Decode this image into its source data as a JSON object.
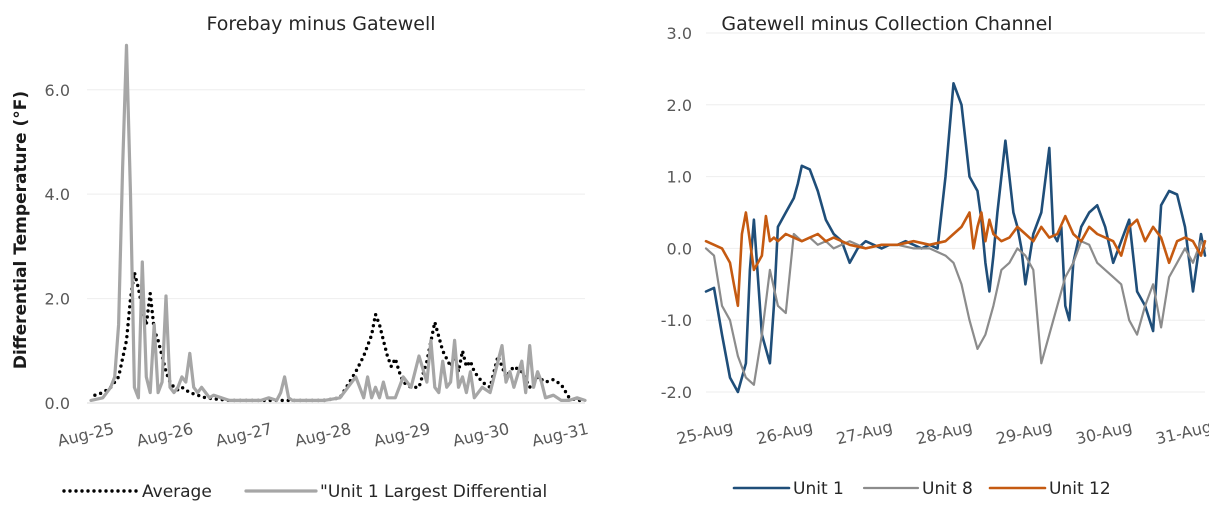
{
  "chart_data": [
    {
      "type": "line",
      "title": "Forebay minus Gatewell",
      "ylabel": "Differential Temperature (°F)",
      "ylim": [
        0,
        6.8
      ],
      "yticks": [
        "0.0",
        "2.0",
        "4.0",
        "6.0"
      ],
      "ytick_values": [
        0,
        2,
        4,
        6
      ],
      "xlim": [
        0,
        6.3
      ],
      "xticks": [
        "Aug-25",
        "Aug-26",
        "Aug-27",
        "Aug-28",
        "Aug-29",
        "Aug-30",
        "Aug-31"
      ],
      "xtick_values": [
        0,
        1,
        2,
        3,
        4,
        5,
        6
      ],
      "grid": true,
      "legend_position": "bottom",
      "series": [
        {
          "name": "Average",
          "style": "dotted",
          "color": "#000000",
          "x": [
            0.1,
            0.2,
            0.3,
            0.4,
            0.5,
            0.55,
            0.6,
            0.65,
            0.7,
            0.75,
            0.8,
            0.85,
            0.9,
            0.95,
            1.0,
            1.05,
            1.1,
            1.15,
            1.2,
            1.3,
            1.4,
            1.5,
            1.6,
            1.8,
            2.0,
            2.2,
            2.4,
            2.6,
            2.8,
            3.0,
            3.2,
            3.4,
            3.5,
            3.6,
            3.65,
            3.7,
            3.75,
            3.8,
            3.85,
            3.9,
            3.95,
            4.0,
            4.1,
            4.2,
            4.3,
            4.4,
            4.5,
            4.6,
            4.65,
            4.7,
            4.75,
            4.8,
            4.85,
            4.9,
            5.0,
            5.1,
            5.2,
            5.3,
            5.4,
            5.5,
            5.6,
            5.7,
            5.8,
            5.9,
            6.0,
            6.1,
            6.2,
            6.3
          ],
          "y": [
            0.15,
            0.2,
            0.3,
            0.5,
            1.2,
            2.0,
            2.5,
            2.2,
            1.8,
            1.5,
            2.1,
            1.4,
            1.2,
            0.9,
            0.6,
            0.4,
            0.3,
            0.25,
            0.3,
            0.2,
            0.15,
            0.1,
            0.08,
            0.05,
            0.05,
            0.05,
            0.05,
            0.05,
            0.05,
            0.05,
            0.1,
            0.6,
            0.9,
            1.3,
            1.7,
            1.5,
            1.2,
            0.9,
            0.7,
            0.85,
            0.6,
            0.4,
            0.3,
            0.3,
            0.8,
            1.55,
            1.0,
            0.7,
            0.9,
            0.6,
            1.0,
            0.7,
            0.8,
            0.6,
            0.4,
            0.3,
            0.9,
            0.5,
            0.7,
            0.6,
            0.3,
            0.5,
            0.4,
            0.45,
            0.35,
            0.1,
            0.05,
            0.05
          ]
        },
        {
          "name": "\"Unit 1 Largest Differential",
          "style": "solid",
          "color": "#a6a6a6",
          "x": [
            0.05,
            0.2,
            0.3,
            0.35,
            0.4,
            0.45,
            0.5,
            0.55,
            0.6,
            0.65,
            0.7,
            0.75,
            0.8,
            0.85,
            0.9,
            0.95,
            1.0,
            1.05,
            1.1,
            1.15,
            1.2,
            1.25,
            1.3,
            1.35,
            1.4,
            1.45,
            1.5,
            1.55,
            1.6,
            1.7,
            1.8,
            1.9,
            2.0,
            2.1,
            2.2,
            2.3,
            2.4,
            2.45,
            2.5,
            2.55,
            2.6,
            2.8,
            3.0,
            3.2,
            3.3,
            3.4,
            3.5,
            3.55,
            3.6,
            3.65,
            3.7,
            3.75,
            3.8,
            3.9,
            4.0,
            4.1,
            4.2,
            4.3,
            4.35,
            4.4,
            4.45,
            4.5,
            4.55,
            4.6,
            4.65,
            4.7,
            4.75,
            4.8,
            4.85,
            4.9,
            5.0,
            5.1,
            5.2,
            5.25,
            5.3,
            5.35,
            5.4,
            5.5,
            5.55,
            5.6,
            5.65,
            5.7,
            5.75,
            5.8,
            5.9,
            6.0,
            6.1,
            6.2,
            6.3
          ],
          "y": [
            0.05,
            0.1,
            0.3,
            0.5,
            1.5,
            4.5,
            6.85,
            4.0,
            0.3,
            0.1,
            2.7,
            0.5,
            0.2,
            1.5,
            0.2,
            0.4,
            2.05,
            0.3,
            0.2,
            0.3,
            0.5,
            0.4,
            0.95,
            0.3,
            0.2,
            0.3,
            0.2,
            0.1,
            0.15,
            0.1,
            0.05,
            0.05,
            0.05,
            0.05,
            0.05,
            0.1,
            0.05,
            0.2,
            0.5,
            0.1,
            0.05,
            0.05,
            0.05,
            0.1,
            0.3,
            0.5,
            0.1,
            0.5,
            0.1,
            0.3,
            0.1,
            0.4,
            0.1,
            0.1,
            0.5,
            0.3,
            0.9,
            0.4,
            1.2,
            0.3,
            0.2,
            0.8,
            0.3,
            0.4,
            1.2,
            0.3,
            0.5,
            0.2,
            0.6,
            0.1,
            0.3,
            0.2,
            0.8,
            1.1,
            0.4,
            0.6,
            0.3,
            0.8,
            0.2,
            1.1,
            0.3,
            0.6,
            0.4,
            0.1,
            0.15,
            0.05,
            0.05,
            0.1,
            0.05
          ]
        }
      ]
    },
    {
      "type": "line",
      "title": "Gatewell minus Collection Channel",
      "ylabel": "",
      "ylim": [
        -2.0,
        3.0
      ],
      "yticks": [
        "-2.0",
        "-1.0",
        "0.0",
        "1.0",
        "2.0",
        "3.0"
      ],
      "ytick_values": [
        -2,
        -1,
        0,
        1,
        2,
        3
      ],
      "xlim": [
        0,
        6.25
      ],
      "xticks": [
        "25-Aug",
        "26-Aug",
        "27-Aug",
        "28-Aug",
        "29-Aug",
        "30-Aug",
        "31-Aug"
      ],
      "xtick_values": [
        0,
        1,
        2,
        3,
        4,
        5,
        6
      ],
      "grid": true,
      "legend_position": "bottom",
      "series": [
        {
          "name": "Unit 1",
          "color": "#1f4e79",
          "x": [
            0.0,
            0.1,
            0.2,
            0.3,
            0.4,
            0.5,
            0.55,
            0.6,
            0.7,
            0.8,
            0.85,
            0.9,
            1.0,
            1.1,
            1.15,
            1.2,
            1.3,
            1.4,
            1.5,
            1.6,
            1.7,
            1.8,
            1.9,
            2.0,
            2.1,
            2.2,
            2.3,
            2.4,
            2.5,
            2.6,
            2.7,
            2.8,
            2.9,
            3.0,
            3.1,
            3.2,
            3.3,
            3.4,
            3.45,
            3.5,
            3.55,
            3.6,
            3.65,
            3.7,
            3.75,
            3.8,
            3.85,
            3.9,
            3.95,
            4.0,
            4.1,
            4.2,
            4.3,
            4.35,
            4.4,
            4.45,
            4.5,
            4.55,
            4.6,
            4.7,
            4.8,
            4.9,
            5.0,
            5.1,
            5.2,
            5.3,
            5.4,
            5.5,
            5.6,
            5.7,
            5.8,
            5.9,
            6.0,
            6.1,
            6.2,
            6.25
          ],
          "y": [
            -0.6,
            -0.55,
            -1.2,
            -1.8,
            -2.0,
            -1.6,
            -0.3,
            0.4,
            -1.2,
            -1.6,
            -0.8,
            0.3,
            0.5,
            0.7,
            0.9,
            1.15,
            1.1,
            0.8,
            0.4,
            0.2,
            0.1,
            -0.2,
            0.0,
            0.1,
            0.05,
            0.0,
            0.05,
            0.05,
            0.1,
            0.05,
            0.0,
            0.05,
            0.0,
            1.0,
            2.3,
            2.0,
            1.0,
            0.8,
            0.4,
            -0.2,
            -0.6,
            -0.1,
            0.5,
            1.0,
            1.5,
            1.0,
            0.5,
            0.3,
            0.0,
            -0.5,
            0.2,
            0.5,
            1.4,
            0.2,
            0.1,
            0.3,
            -0.8,
            -1.0,
            -0.2,
            0.3,
            0.5,
            0.6,
            0.3,
            -0.2,
            0.1,
            0.4,
            -0.6,
            -0.8,
            -1.15,
            0.6,
            0.8,
            0.75,
            0.3,
            -0.6,
            0.2,
            -0.1
          ]
        },
        {
          "name": "Unit 8",
          "color": "#8c8c8c",
          "x": [
            0.0,
            0.1,
            0.2,
            0.3,
            0.4,
            0.5,
            0.6,
            0.7,
            0.8,
            0.9,
            1.0,
            1.1,
            1.2,
            1.3,
            1.4,
            1.5,
            1.6,
            1.7,
            1.8,
            1.9,
            2.0,
            2.2,
            2.4,
            2.6,
            2.8,
            3.0,
            3.1,
            3.2,
            3.3,
            3.4,
            3.5,
            3.6,
            3.7,
            3.8,
            3.9,
            4.0,
            4.1,
            4.2,
            4.3,
            4.4,
            4.5,
            4.6,
            4.7,
            4.8,
            4.9,
            5.0,
            5.1,
            5.2,
            5.3,
            5.4,
            5.5,
            5.6,
            5.7,
            5.8,
            5.9,
            6.0,
            6.1,
            6.2,
            6.25
          ],
          "y": [
            0.0,
            -0.1,
            -0.8,
            -1.0,
            -1.5,
            -1.8,
            -1.9,
            -1.2,
            -0.3,
            -0.8,
            -0.9,
            0.2,
            0.1,
            0.15,
            0.05,
            0.1,
            0.0,
            0.05,
            0.1,
            0.05,
            0.0,
            0.05,
            0.05,
            0.0,
            0.0,
            -0.1,
            -0.2,
            -0.5,
            -1.0,
            -1.4,
            -1.2,
            -0.8,
            -0.3,
            -0.2,
            0.0,
            -0.1,
            -0.3,
            -1.6,
            -1.2,
            -0.8,
            -0.4,
            -0.2,
            0.1,
            0.05,
            -0.2,
            -0.3,
            -0.4,
            -0.5,
            -1.0,
            -1.2,
            -0.8,
            -0.5,
            -1.1,
            -0.4,
            -0.2,
            0.0,
            -0.2,
            0.1,
            0.0
          ]
        },
        {
          "name": "Unit 12",
          "color": "#c55a11",
          "x": [
            0.0,
            0.1,
            0.2,
            0.3,
            0.35,
            0.4,
            0.45,
            0.5,
            0.6,
            0.7,
            0.75,
            0.8,
            0.85,
            0.9,
            1.0,
            1.1,
            1.2,
            1.3,
            1.4,
            1.5,
            1.6,
            1.8,
            2.0,
            2.2,
            2.4,
            2.6,
            2.8,
            3.0,
            3.1,
            3.2,
            3.3,
            3.35,
            3.4,
            3.45,
            3.5,
            3.55,
            3.6,
            3.7,
            3.8,
            3.9,
            4.0,
            4.1,
            4.2,
            4.3,
            4.4,
            4.5,
            4.6,
            4.7,
            4.8,
            4.9,
            5.0,
            5.1,
            5.2,
            5.3,
            5.4,
            5.5,
            5.6,
            5.7,
            5.8,
            5.9,
            6.0,
            6.1,
            6.2,
            6.25
          ],
          "y": [
            0.1,
            0.05,
            0.0,
            -0.2,
            -0.5,
            -0.8,
            0.2,
            0.5,
            -0.3,
            -0.1,
            0.45,
            0.1,
            0.15,
            0.1,
            0.2,
            0.15,
            0.1,
            0.15,
            0.2,
            0.1,
            0.15,
            0.05,
            0.0,
            0.05,
            0.05,
            0.1,
            0.05,
            0.1,
            0.2,
            0.3,
            0.5,
            0.0,
            0.3,
            0.5,
            0.1,
            0.4,
            0.2,
            0.1,
            0.15,
            0.3,
            0.2,
            0.1,
            0.3,
            0.15,
            0.2,
            0.45,
            0.2,
            0.1,
            0.3,
            0.2,
            0.15,
            0.1,
            -0.1,
            0.3,
            0.4,
            0.1,
            0.3,
            0.15,
            -0.2,
            0.1,
            0.15,
            0.1,
            -0.1,
            0.1
          ]
        }
      ]
    }
  ]
}
